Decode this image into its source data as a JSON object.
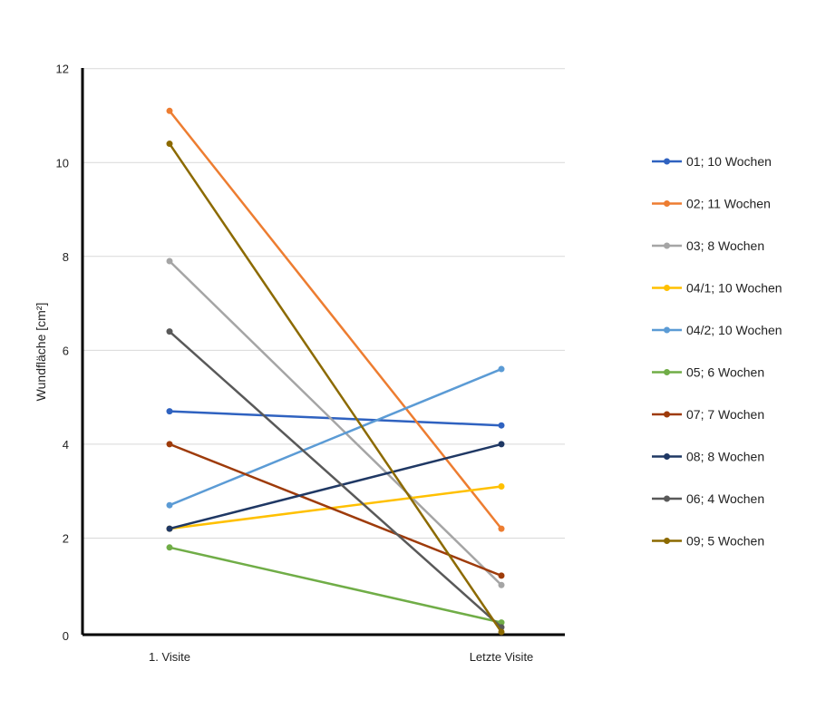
{
  "chart_data": {
    "type": "line",
    "title": "",
    "xlabel": "",
    "ylabel": "Wundfläche [cm²]",
    "categories": [
      "1. Visite",
      "Letzte Visite"
    ],
    "ylim": [
      0,
      12
    ],
    "yticks": [
      "0",
      "2",
      "4",
      "6",
      "8",
      "10",
      "12"
    ],
    "grid": true,
    "legend_position": "right",
    "series": [
      {
        "name": "01; 10 Wochen",
        "values": [
          4.7,
          4.4
        ],
        "color": "#2F62C0"
      },
      {
        "name": "02; 11 Wochen",
        "values": [
          11.1,
          2.2
        ],
        "color": "#ED7D31"
      },
      {
        "name": "03; 8 Wochen",
        "values": [
          7.9,
          1.0
        ],
        "color": "#A5A5A5"
      },
      {
        "name": "04/1; 10 Wochen",
        "values": [
          2.2,
          3.1
        ],
        "color": "#FFC000"
      },
      {
        "name": "04/2; 10 Wochen",
        "values": [
          2.7,
          5.6
        ],
        "color": "#5B9BD5"
      },
      {
        "name": "05; 6 Wochen",
        "values": [
          1.8,
          0.2
        ],
        "color": "#70AD47"
      },
      {
        "name": "07; 7 Wochen",
        "values": [
          4.0,
          1.2
        ],
        "color": "#9E3B0A"
      },
      {
        "name": "08; 8 Wochen",
        "values": [
          2.2,
          4.0
        ],
        "color": "#1F3864"
      },
      {
        "name": "06; 4 Wochen",
        "values": [
          6.4,
          0.1
        ],
        "color": "#595959"
      },
      {
        "name": "09; 5 Wochen",
        "values": [
          10.4,
          0.0
        ],
        "color": "#8C6A00"
      }
    ]
  }
}
